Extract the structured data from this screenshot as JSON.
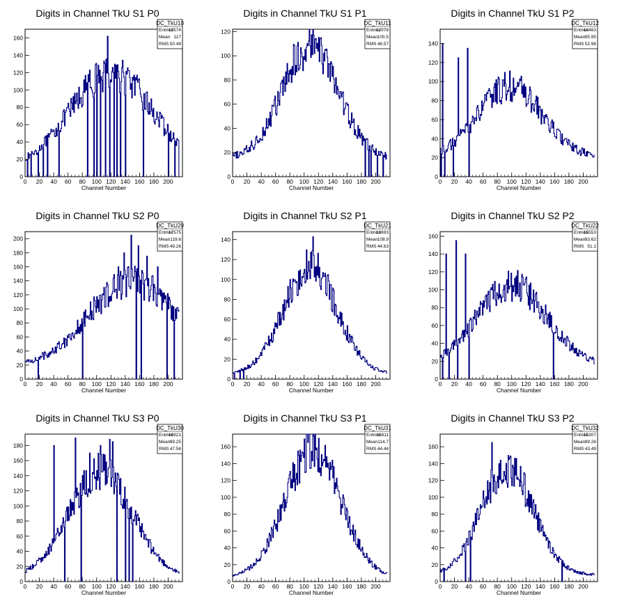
{
  "chart_data": [
    {
      "type": "bar",
      "title": "Digits in Channel TkU S1 P0",
      "xlabel": "Channel Number",
      "xlim": [
        0,
        220
      ],
      "ylim": [
        0,
        170
      ],
      "xticks": [
        0,
        20,
        40,
        60,
        80,
        100,
        120,
        140,
        160,
        180,
        200
      ],
      "yticks": [
        0,
        20,
        40,
        60,
        80,
        100,
        120,
        140,
        160
      ],
      "stats": {
        "name": "DC_TkU10",
        "entries_label": "Entries",
        "entries": "13574",
        "mean_label": "Mean",
        "mean": "117",
        "rms_label": "RMS",
        "rms": "50.49"
      },
      "color": "#000080",
      "envelope": {
        "center": 120,
        "width": 70,
        "peak": 120,
        "base": 10
      },
      "spikes": [
        [
          3,
          0
        ],
        [
          8,
          0
        ],
        [
          18,
          0
        ],
        [
          25,
          0
        ],
        [
          31,
          0
        ],
        [
          47,
          0
        ],
        [
          87,
          0
        ],
        [
          96,
          0
        ],
        [
          100,
          0
        ],
        [
          105,
          0
        ],
        [
          112,
          0
        ],
        [
          115,
          162
        ],
        [
          118,
          0
        ],
        [
          124,
          0
        ],
        [
          128,
          0
        ],
        [
          133,
          0
        ],
        [
          140,
          0
        ],
        [
          165,
          0
        ],
        [
          175,
          75
        ],
        [
          200,
          0
        ],
        [
          209,
          0
        ],
        [
          215,
          0
        ]
      ]
    },
    {
      "type": "bar",
      "title": "Digits in Channel TkU S1 P1",
      "xlabel": "Channel Number",
      "xlim": [
        0,
        220
      ],
      "ylim": [
        0,
        122
      ],
      "xticks": [
        0,
        20,
        40,
        60,
        80,
        100,
        120,
        140,
        160,
        180,
        200
      ],
      "yticks": [
        0,
        20,
        40,
        60,
        80,
        100,
        120
      ],
      "stats": {
        "name": "DC_TkU11",
        "entries_label": "Entries",
        "entries": "12978",
        "mean_label": "Mean",
        "mean": "105.5",
        "rms_label": "RMS",
        "rms": "46.57"
      },
      "color": "#000080",
      "envelope": {
        "center": 108,
        "width": 48,
        "peak": 108,
        "base": 15
      },
      "spikes": [
        [
          113,
          117
        ],
        [
          123,
          115
        ],
        [
          185,
          0
        ],
        [
          190,
          0
        ],
        [
          193,
          0
        ],
        [
          202,
          0
        ],
        [
          210,
          0
        ]
      ]
    },
    {
      "type": "bar",
      "title": "Digits in Channel TkU S1 P2",
      "xlabel": "Channel Number",
      "xlim": [
        0,
        220
      ],
      "ylim": [
        0,
        155
      ],
      "xticks": [
        0,
        20,
        40,
        60,
        80,
        100,
        120,
        140,
        160,
        180,
        200
      ],
      "yticks": [
        0,
        20,
        40,
        60,
        80,
        100,
        120,
        140
      ],
      "stats": {
        "name": "DC_TkU12",
        "entries_label": "Entries",
        "entries": "14463",
        "mean_label": "Mean",
        "mean": "95.95",
        "rms_label": "RMS",
        "rms": "52.96"
      },
      "color": "#000080",
      "envelope": {
        "center": 97,
        "width": 55,
        "peak": 95,
        "base": 20
      },
      "spikes": [
        [
          1,
          0
        ],
        [
          3,
          140
        ],
        [
          6,
          0
        ],
        [
          18,
          0
        ],
        [
          25,
          125
        ],
        [
          38,
          135
        ],
        [
          40,
          0
        ]
      ]
    },
    {
      "type": "bar",
      "title": "Digits in Channel TkU S2 P0",
      "xlabel": "Channel Number",
      "xlim": [
        0,
        220
      ],
      "ylim": [
        0,
        210
      ],
      "xticks": [
        0,
        20,
        40,
        60,
        80,
        100,
        120,
        140,
        160,
        180,
        200
      ],
      "yticks": [
        0,
        20,
        40,
        60,
        80,
        100,
        120,
        140,
        160,
        180,
        200
      ],
      "stats": {
        "name": "DC_TkU20",
        "entries_label": "Entries",
        "entries": "17575",
        "mean_label": "Mean",
        "mean": "119.6",
        "rms_label": "RMS",
        "rms": "49.26"
      },
      "color": "#000080",
      "envelope": {
        "center": 150,
        "width": 75,
        "peak": 140,
        "base": 18
      },
      "spikes": [
        [
          18,
          0
        ],
        [
          80,
          0
        ],
        [
          130,
          160
        ],
        [
          138,
          180
        ],
        [
          148,
          205
        ],
        [
          155,
          0
        ],
        [
          158,
          190
        ],
        [
          162,
          0
        ],
        [
          170,
          175
        ],
        [
          185,
          160
        ],
        [
          198,
          0
        ],
        [
          208,
          0
        ]
      ]
    },
    {
      "type": "bar",
      "title": "Digits in Channel TkU S2 P1",
      "xlabel": "Channel Number",
      "xlim": [
        0,
        220
      ],
      "ylim": [
        0,
        148
      ],
      "xticks": [
        0,
        20,
        40,
        60,
        80,
        100,
        120,
        140,
        160,
        180,
        200
      ],
      "yticks": [
        0,
        20,
        40,
        60,
        80,
        100,
        120,
        140
      ],
      "stats": {
        "name": "DC_TkU21",
        "entries_label": "Entries",
        "entries": "13693",
        "mean_label": "Mean",
        "mean": "108.9",
        "rms_label": "RMS",
        "rms": "44.63"
      },
      "color": "#000080",
      "envelope": {
        "center": 108,
        "width": 46,
        "peak": 112,
        "base": 5
      },
      "spikes": [
        [
          2,
          0
        ],
        [
          10,
          0
        ],
        [
          15,
          0
        ],
        [
          112,
          143
        ]
      ]
    },
    {
      "type": "bar",
      "title": "Digits in Channel TkU S2 P2",
      "xlabel": "Channel Number",
      "xlim": [
        0,
        220
      ],
      "ylim": [
        0,
        165
      ],
      "xticks": [
        0,
        20,
        40,
        60,
        80,
        100,
        120,
        140,
        160,
        180,
        200
      ],
      "yticks": [
        0,
        20,
        40,
        60,
        80,
        100,
        120,
        140,
        160
      ],
      "stats": {
        "name": "DC_TkU22",
        "entries_label": "Entries",
        "entries": "15553",
        "mean_label": "Mean",
        "mean": "93.62",
        "rms_label": "RMS",
        "rms": "51.1"
      },
      "color": "#000080",
      "envelope": {
        "center": 100,
        "width": 60,
        "peak": 105,
        "base": 15
      },
      "spikes": [
        [
          3,
          0
        ],
        [
          8,
          140
        ],
        [
          12,
          0
        ],
        [
          22,
          155
        ],
        [
          24,
          0
        ],
        [
          35,
          140
        ],
        [
          40,
          0
        ],
        [
          158,
          0
        ]
      ]
    },
    {
      "type": "bar",
      "title": "Digits in Channel TkU S3 P0",
      "xlabel": "Channel Number",
      "xlim": [
        0,
        220
      ],
      "ylim": [
        0,
        195
      ],
      "xticks": [
        0,
        20,
        40,
        60,
        80,
        100,
        120,
        140,
        160,
        180,
        200
      ],
      "yticks": [
        0,
        20,
        40,
        60,
        80,
        100,
        120,
        140,
        160,
        180
      ],
      "stats": {
        "name": "DC_TkU30",
        "entries_label": "Entries",
        "entries": "16921",
        "mean_label": "Mean",
        "mean": "99.25",
        "rms_label": "RMS",
        "rms": "47.56"
      },
      "color": "#000080",
      "envelope": {
        "center": 105,
        "width": 55,
        "peak": 145,
        "base": 5
      },
      "spikes": [
        [
          40,
          180
        ],
        [
          55,
          0
        ],
        [
          70,
          190
        ],
        [
          78,
          0
        ],
        [
          90,
          170
        ],
        [
          105,
          180
        ],
        [
          118,
          188
        ],
        [
          122,
          185
        ],
        [
          128,
          0
        ],
        [
          140,
          0
        ],
        [
          145,
          0
        ],
        [
          150,
          0
        ]
      ]
    },
    {
      "type": "bar",
      "title": "Digits in Channel TkU S3 P1",
      "xlabel": "Channel Number",
      "xlim": [
        0,
        220
      ],
      "ylim": [
        0,
        175
      ],
      "xticks": [
        0,
        20,
        40,
        60,
        80,
        100,
        120,
        140,
        160,
        180,
        200
      ],
      "yticks": [
        0,
        20,
        40,
        60,
        80,
        100,
        120,
        140,
        160
      ],
      "stats": {
        "name": "DC_TkU31",
        "entries_label": "Entries",
        "entries": "16811",
        "mean_label": "Mean",
        "mean": "114.7",
        "rms_label": "RMS",
        "rms": "44.44"
      },
      "color": "#000080",
      "envelope": {
        "center": 112,
        "width": 48,
        "peak": 155,
        "base": 5
      },
      "spikes": [
        [
          105,
          165
        ],
        [
          120,
          170
        ]
      ]
    },
    {
      "type": "bar",
      "title": "Digits in Channel TkU S3 P2",
      "xlabel": "Channel Number",
      "xlim": [
        0,
        220
      ],
      "ylim": [
        0,
        175
      ],
      "xticks": [
        0,
        20,
        40,
        60,
        80,
        100,
        120,
        140,
        160,
        180,
        200
      ],
      "yticks": [
        0,
        20,
        40,
        60,
        80,
        100,
        120,
        140,
        160
      ],
      "stats": {
        "name": "DC_TkU32",
        "entries_label": "Entries",
        "entries": "15307",
        "mean_label": "Mean",
        "mean": "99.26",
        "rms_label": "RMS",
        "rms": "43.49"
      },
      "color": "#000080",
      "envelope": {
        "center": 93,
        "width": 45,
        "peak": 135,
        "base": 8
      },
      "spikes": [
        [
          5,
          0
        ],
        [
          35,
          0
        ],
        [
          42,
          0
        ],
        [
          72,
          165
        ],
        [
          170,
          0
        ]
      ]
    }
  ]
}
